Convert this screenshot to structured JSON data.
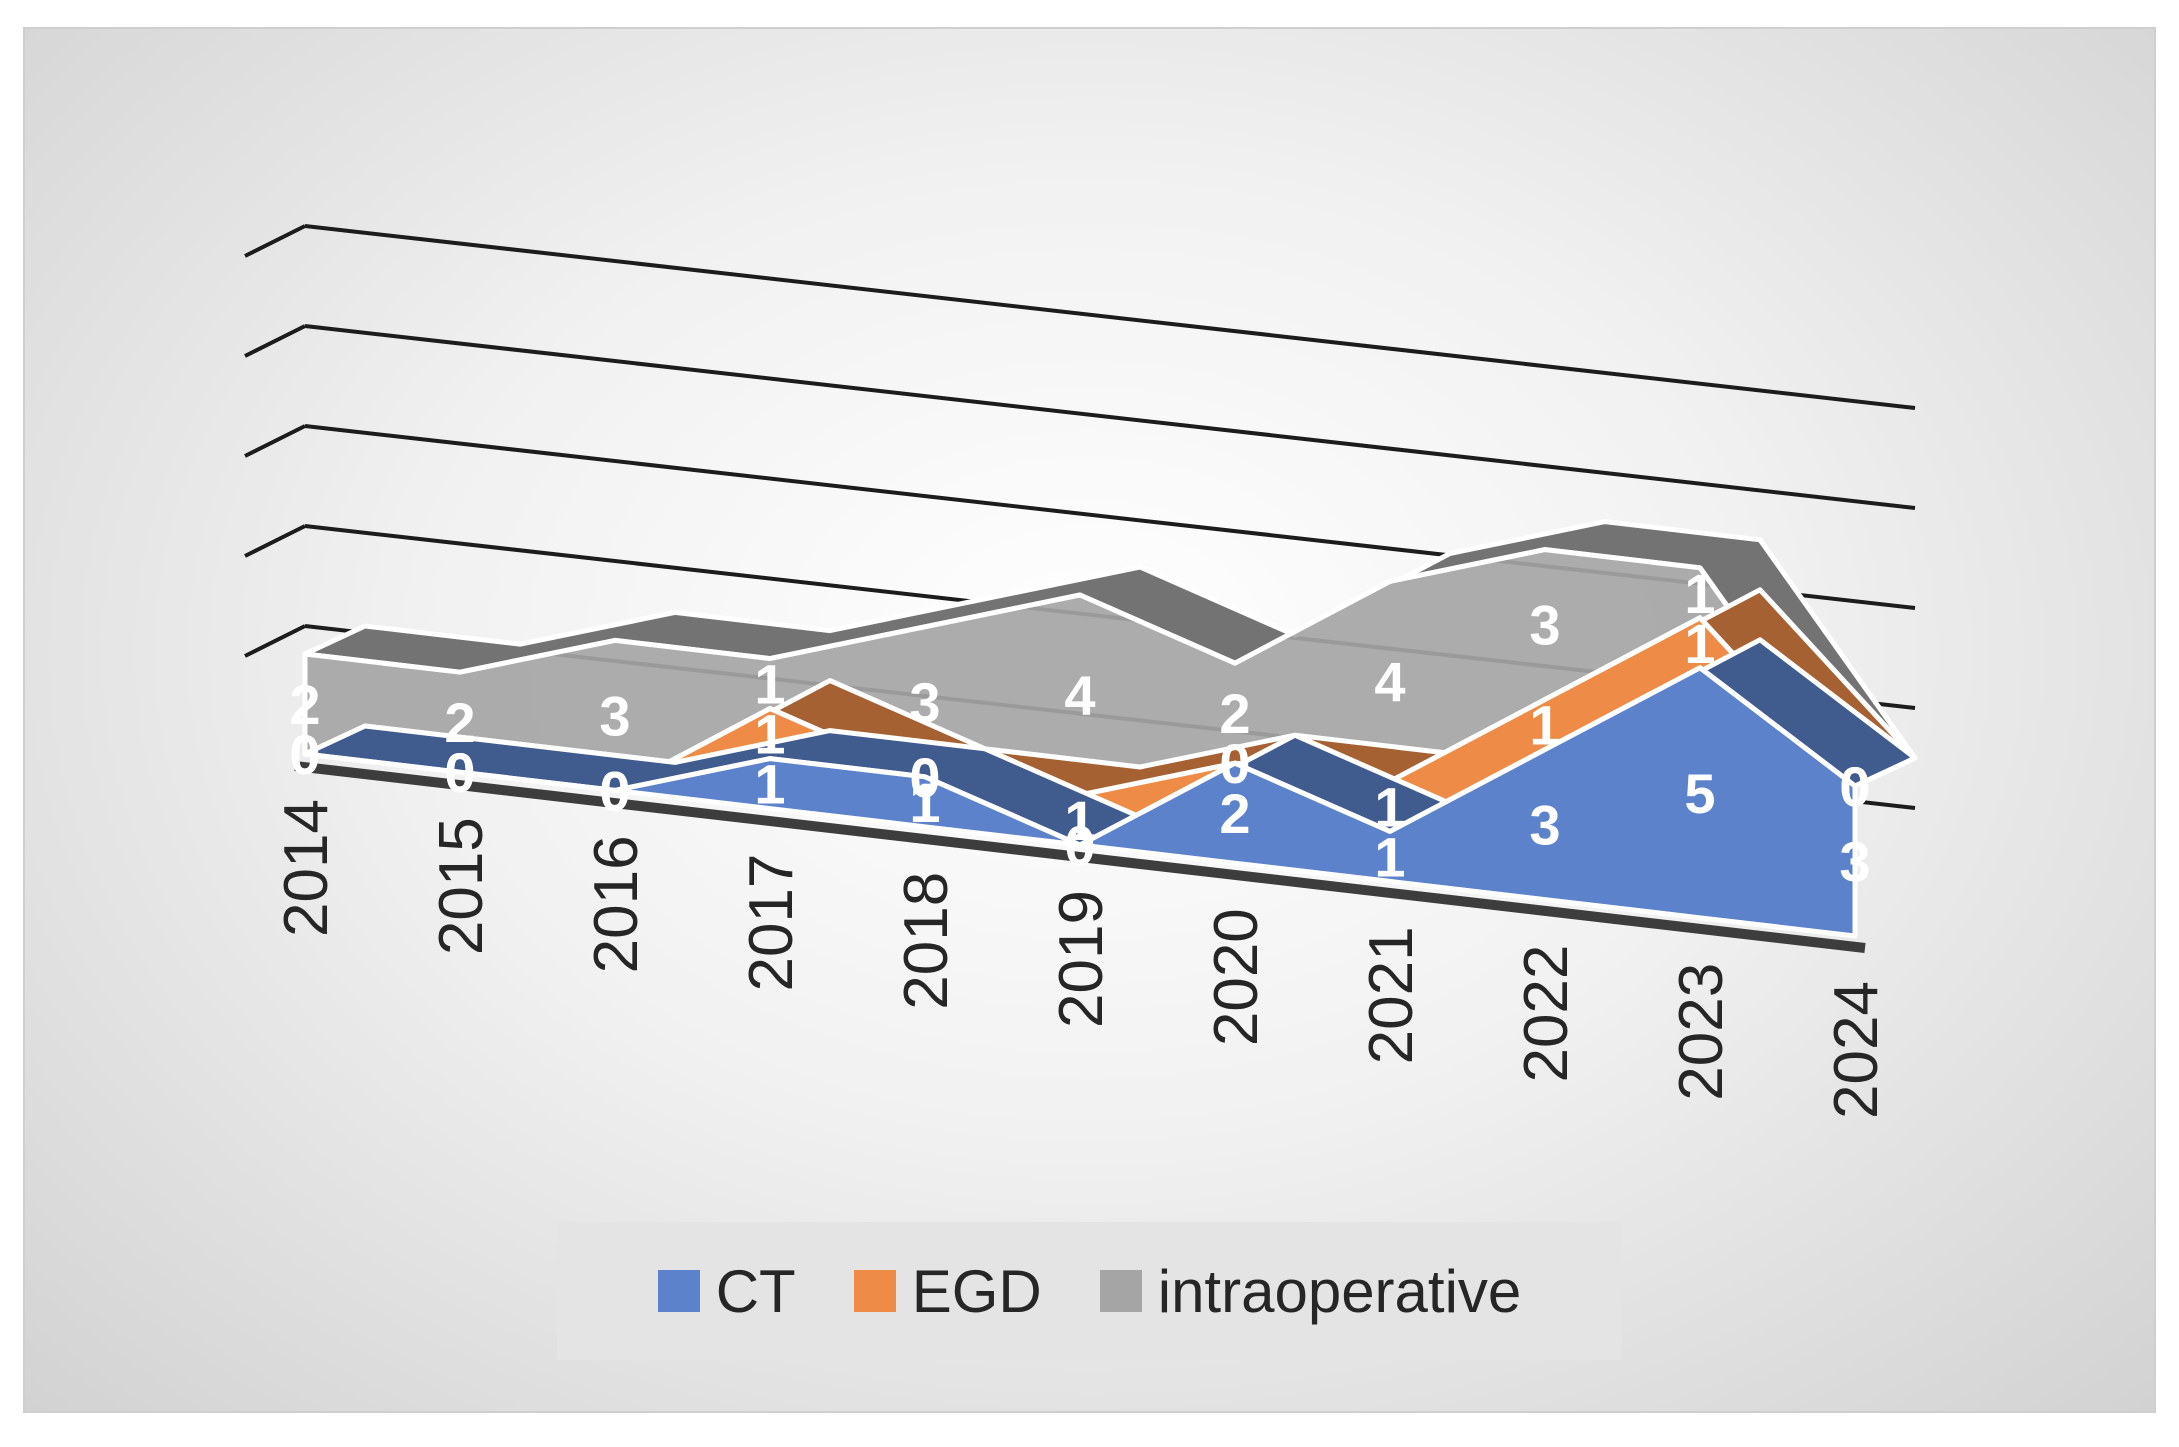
{
  "chart_data": {
    "type": "area",
    "subtype": "3d-stacked",
    "title": "",
    "xlabel": "",
    "ylabel": "",
    "categories": [
      "2014",
      "2015",
      "2016",
      "2017",
      "2018",
      "2019",
      "2020",
      "2021",
      "2022",
      "2023",
      "2024"
    ],
    "series": [
      {
        "name": "CT",
        "color": "#5b82cb",
        "values": [
          0,
          0,
          0,
          1,
          1,
          0,
          2,
          1,
          3,
          5,
          3
        ]
      },
      {
        "name": "EGD",
        "color": "#ed8b47",
        "values": [
          0,
          0,
          0,
          1,
          0,
          1,
          0,
          1,
          1,
          1,
          0
        ]
      },
      {
        "name": "intraoperative",
        "color": "#a5a5a5",
        "values": [
          2,
          2,
          3,
          1,
          3,
          4,
          2,
          4,
          3,
          1,
          0
        ]
      }
    ],
    "ylim": [
      0,
      10
    ],
    "grid": true,
    "legend": "bottom"
  }
}
